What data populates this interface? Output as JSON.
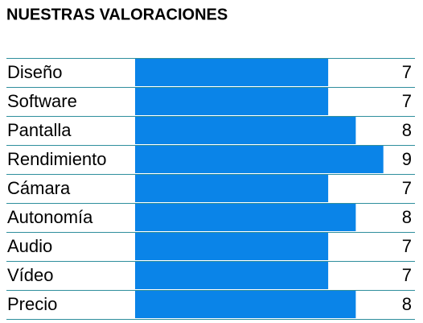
{
  "chart_data": {
    "type": "bar",
    "orientation": "horizontal",
    "title": "NUESTRAS VALORACIONES",
    "categories": [
      "Diseño",
      "Software",
      "Pantalla",
      "Rendimiento",
      "Cámara",
      "Autonomía",
      "Audio",
      "Vídeo",
      "Precio"
    ],
    "values": [
      7,
      7,
      8,
      9,
      7,
      8,
      7,
      7,
      8
    ],
    "color": "#0a84e8",
    "xlim": [
      0,
      10
    ]
  }
}
